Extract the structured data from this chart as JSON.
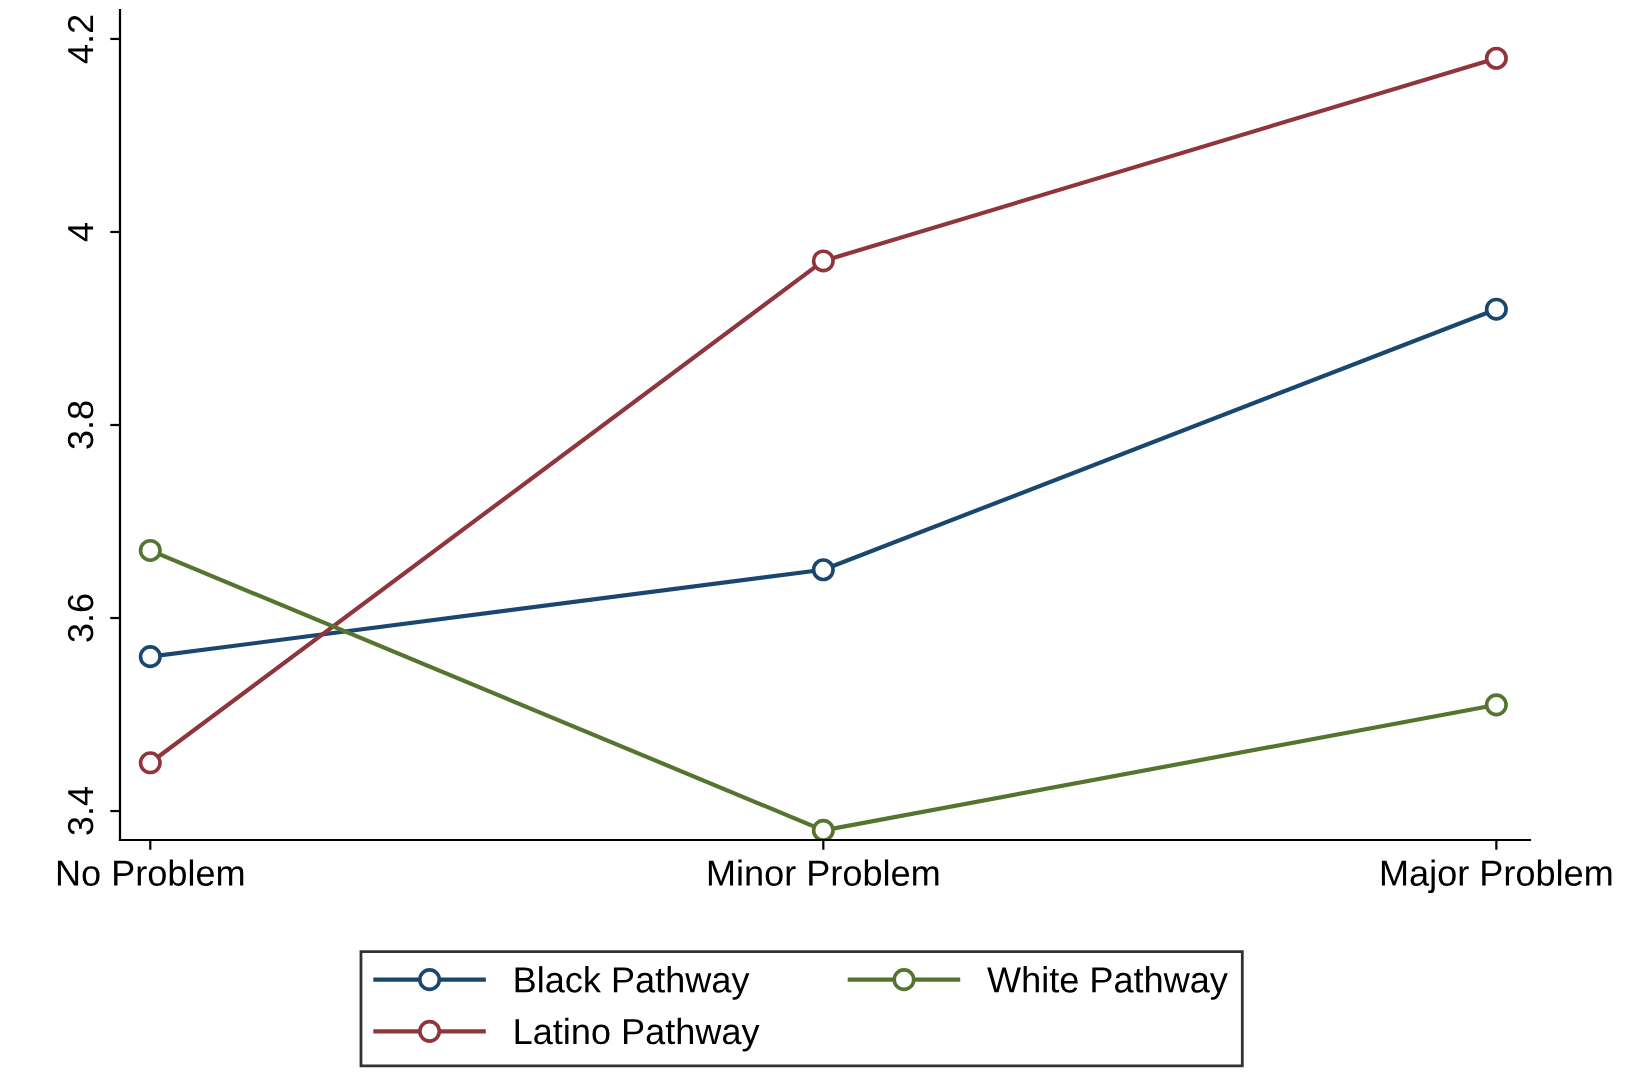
{
  "chart_data": {
    "type": "line",
    "categories": [
      "No Problem",
      "Minor Problem",
      "Major Problem"
    ],
    "series": [
      {
        "name": "Black Pathway",
        "color": "#1a476f",
        "values": [
          3.56,
          3.65,
          3.92
        ]
      },
      {
        "name": "Latino Pathway",
        "color": "#90353b",
        "values": [
          3.45,
          3.97,
          4.18
        ]
      },
      {
        "name": "White Pathway",
        "color": "#55752f",
        "values": [
          3.67,
          3.38,
          3.51
        ]
      }
    ],
    "ylim": [
      3.37,
      4.23
    ],
    "yticks": [
      3.4,
      3.6,
      3.8,
      4,
      4.2
    ],
    "grid": false,
    "legend": "bottom",
    "marker": "circle",
    "line_style": "solid"
  }
}
